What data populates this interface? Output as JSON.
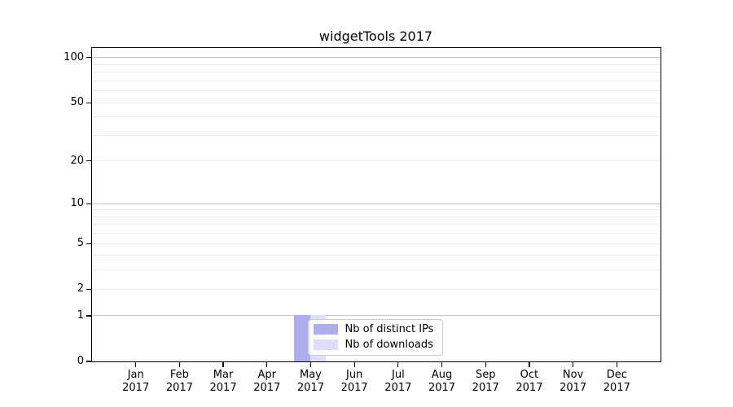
{
  "chart_data": {
    "type": "bar",
    "title": "widgetTools 2017",
    "categories": [
      "Jan",
      "Feb",
      "Mar",
      "Apr",
      "May",
      "Jun",
      "Jul",
      "Aug",
      "Sep",
      "Oct",
      "Nov",
      "Dec"
    ],
    "x_tick_sublabel": "2017",
    "series": [
      {
        "name": "Nb of distinct IPs",
        "color": "#aeaeef",
        "values": [
          0,
          0,
          0,
          0,
          1,
          0,
          0,
          0,
          0,
          0,
          0,
          0
        ]
      },
      {
        "name": "Nb of downloads",
        "color": "#dedef8",
        "values": [
          0,
          0,
          0,
          0,
          1,
          0,
          0,
          0,
          0,
          0,
          0,
          0
        ]
      }
    ],
    "yscale": "log1p",
    "ylim": [
      0,
      116
    ],
    "ytick_values": [
      0,
      1,
      2,
      5,
      10,
      20,
      50,
      100
    ],
    "ytick_labels": [
      "0",
      "1",
      "2",
      "5",
      "10",
      "20",
      "50",
      "100"
    ],
    "major_gridline_values": [
      1,
      10,
      100
    ],
    "minor_gridline_values": [
      2,
      3,
      4,
      5,
      6,
      7,
      8,
      9,
      20,
      30,
      40,
      50,
      60,
      70,
      80,
      90
    ],
    "grid": "horizontal",
    "legend": {
      "location": "inside-lower-center",
      "entries": [
        "Nb of distinct IPs",
        "Nb of downloads"
      ]
    },
    "colors": {
      "axis": "#000000",
      "major_grid": "#c3c3c3",
      "minor_grid": "#ececec",
      "legend_border": "#cccccc",
      "background": "#ffffff"
    }
  }
}
